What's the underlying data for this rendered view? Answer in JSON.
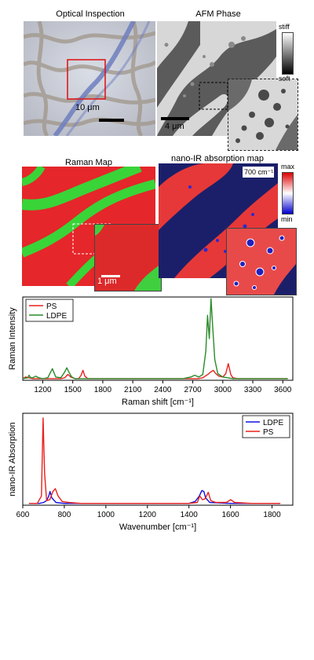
{
  "panels": {
    "optical": {
      "title": "Optical Inspection",
      "scale_bar": "10 μm"
    },
    "afm": {
      "title": "AFM  Phase",
      "scale_bar": "4 μm",
      "colorbar": {
        "top": "stiff",
        "bottom": "soft"
      }
    },
    "raman_map": {
      "title": "Raman Map",
      "scale_bar": "1 μm"
    },
    "nanoir_map": {
      "title": "nano-IR absorption map",
      "inset_label": "700 cm⁻¹",
      "colorbar": {
        "top": "max",
        "bottom": "min"
      }
    }
  },
  "colors": {
    "ps": "#e8211c",
    "ldpe": "#2a8a2a",
    "ldpe_ir": "#1010e0",
    "map_red": "#e5262a",
    "map_green": "#39d438"
  },
  "chart_data": [
    {
      "type": "line",
      "title": "",
      "xlabel": "Raman shift [cm⁻¹]",
      "ylabel": "Raman Intensity",
      "xlim": [
        1000,
        3700
      ],
      "ylim": [
        0,
        1.0
      ],
      "x_ticks": [
        1200,
        1500,
        1800,
        2100,
        2400,
        2700,
        3000,
        3300,
        3600
      ],
      "legend": "top-left",
      "series": [
        {
          "name": "PS",
          "color": "#e8211c",
          "x": [
            1000,
            1030,
            1060,
            1100,
            1150,
            1180,
            1200,
            1250,
            1290,
            1330,
            1380,
            1420,
            1450,
            1480,
            1520,
            1560,
            1583,
            1602,
            1620,
            1650,
            1700,
            1800,
            1900,
            2000,
            2200,
            2400,
            2600,
            2700,
            2750,
            2800,
            2850,
            2880,
            2904,
            2930,
            2960,
            3000,
            3030,
            3055,
            3080,
            3100,
            3150,
            3200,
            3300,
            3400,
            3500,
            3600,
            3650
          ],
          "y": [
            0.02,
            0.04,
            0.03,
            0.02,
            0.02,
            0.02,
            0.02,
            0.02,
            0.02,
            0.02,
            0.02,
            0.03,
            0.07,
            0.04,
            0.02,
            0.02,
            0.06,
            0.12,
            0.05,
            0.02,
            0.02,
            0.02,
            0.02,
            0.02,
            0.02,
            0.02,
            0.02,
            0.02,
            0.02,
            0.03,
            0.07,
            0.1,
            0.12,
            0.08,
            0.05,
            0.04,
            0.08,
            0.2,
            0.07,
            0.03,
            0.02,
            0.02,
            0.02,
            0.02,
            0.02,
            0.02,
            0.02
          ]
        },
        {
          "name": "LDPE",
          "color": "#2a8a2a",
          "x": [
            1000,
            1050,
            1063,
            1080,
            1100,
            1129,
            1160,
            1200,
            1250,
            1296,
            1330,
            1380,
            1420,
            1440,
            1460,
            1490,
            1520,
            1600,
            1700,
            1800,
            1900,
            2000,
            2200,
            2400,
            2600,
            2680,
            2720,
            2760,
            2800,
            2830,
            2848,
            2865,
            2882,
            2900,
            2920,
            2950,
            3000,
            3050,
            3100,
            3200,
            3300,
            3400,
            3500,
            3600,
            3650
          ],
          "y": [
            0.02,
            0.03,
            0.06,
            0.03,
            0.03,
            0.05,
            0.03,
            0.02,
            0.03,
            0.14,
            0.04,
            0.03,
            0.1,
            0.15,
            0.1,
            0.04,
            0.02,
            0.02,
            0.02,
            0.02,
            0.02,
            0.02,
            0.02,
            0.02,
            0.02,
            0.04,
            0.06,
            0.04,
            0.07,
            0.35,
            0.78,
            0.5,
            0.98,
            0.62,
            0.25,
            0.08,
            0.04,
            0.03,
            0.02,
            0.02,
            0.02,
            0.02,
            0.02,
            0.02,
            0.02
          ]
        }
      ]
    },
    {
      "type": "line",
      "title": "",
      "xlabel": "Wavenumber [cm⁻¹]",
      "ylabel": "nano-IR Absorption",
      "xlim": [
        600,
        1900
      ],
      "ylim": [
        0,
        1.0
      ],
      "x_ticks": [
        600,
        800,
        1000,
        1200,
        1400,
        1600,
        1800
      ],
      "legend": "top-right",
      "series": [
        {
          "name": "LDPE",
          "color": "#1010e0",
          "x": [
            630,
            680,
            700,
            715,
            725,
            731,
            740,
            760,
            800,
            1000,
            1200,
            1400,
            1430,
            1450,
            1462,
            1472,
            1480,
            1500,
            1600,
            1700,
            1800,
            1840
          ],
          "y": [
            0.02,
            0.02,
            0.03,
            0.05,
            0.1,
            0.15,
            0.08,
            0.03,
            0.02,
            0.02,
            0.02,
            0.02,
            0.04,
            0.1,
            0.16,
            0.15,
            0.08,
            0.03,
            0.02,
            0.02,
            0.02,
            0.02
          ]
        },
        {
          "name": "PS",
          "color": "#e8211c",
          "x": [
            630,
            670,
            690,
            698,
            705,
            715,
            730,
            745,
            757,
            770,
            790,
            820,
            880,
            900,
            1000,
            1200,
            1400,
            1440,
            1452,
            1465,
            1478,
            1493,
            1505,
            1530,
            1580,
            1601,
            1620,
            1700,
            1800,
            1840
          ],
          "y": [
            0.02,
            0.02,
            0.1,
            0.95,
            0.35,
            0.05,
            0.06,
            0.15,
            0.18,
            0.1,
            0.04,
            0.03,
            0.02,
            0.02,
            0.02,
            0.02,
            0.02,
            0.03,
            0.1,
            0.06,
            0.07,
            0.14,
            0.05,
            0.03,
            0.03,
            0.06,
            0.03,
            0.02,
            0.02,
            0.02
          ]
        }
      ]
    }
  ]
}
